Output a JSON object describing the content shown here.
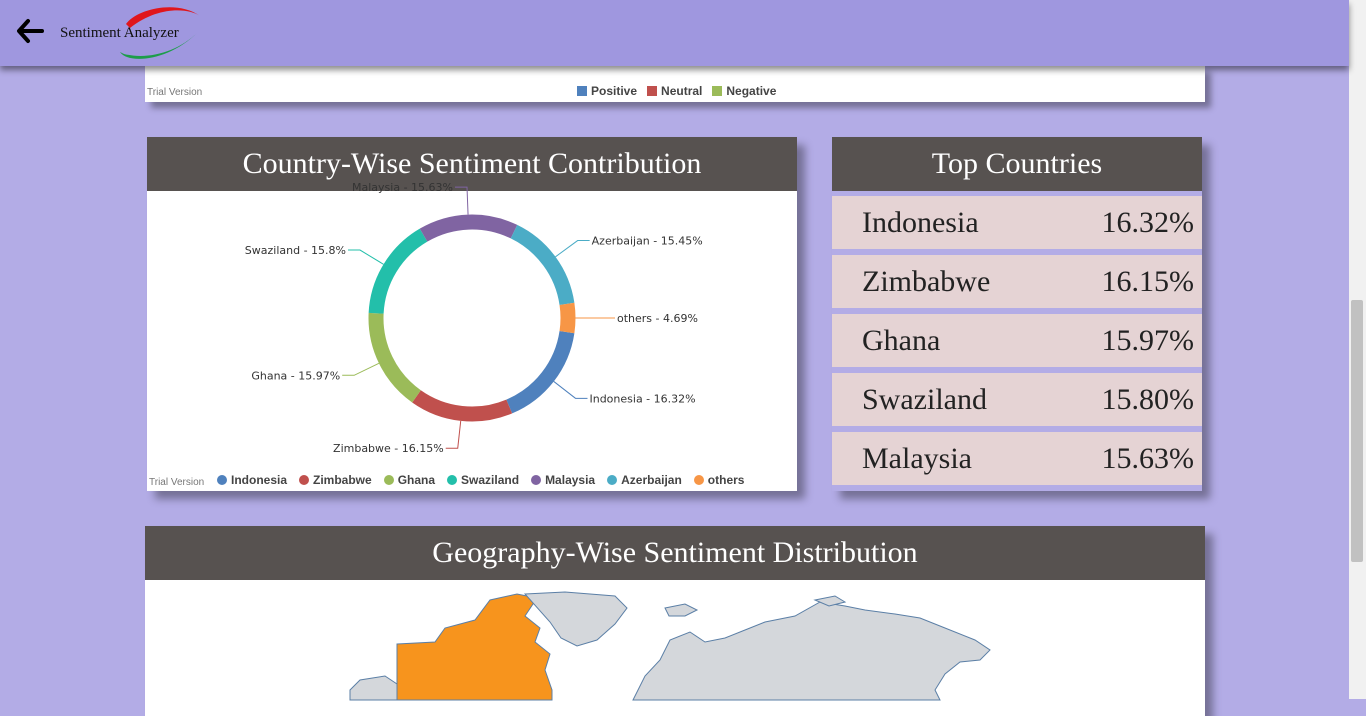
{
  "header": {
    "app_title": "Sentiment Analyzer",
    "back_icon": "arrow-left-icon"
  },
  "top_chart": {
    "trial_text": "Trial Version",
    "legend": [
      {
        "label": "Positive",
        "color": "#4f81bd"
      },
      {
        "label": "Neutral",
        "color": "#c0504d"
      },
      {
        "label": "Negative",
        "color": "#9bbb59"
      }
    ]
  },
  "country_panel": {
    "title": "Country-Wise Sentiment Contribution",
    "trial_text": "Trial Version"
  },
  "chart_data": {
    "type": "pie",
    "categories": [
      "Indonesia",
      "Zimbabwe",
      "Ghana",
      "Swaziland",
      "Malaysia",
      "Azerbaijan",
      "others"
    ],
    "values": [
      16.32,
      16.15,
      15.97,
      15.8,
      15.63,
      15.45,
      4.69
    ],
    "labels": [
      "Indonesia - 16.32%",
      "Zimbabwe - 16.15%",
      "Ghana - 15.97%",
      "Swaziland - 15.8%",
      "Malaysia - 15.63%",
      "Azerbaijan - 15.45%",
      "others - 4.69%"
    ],
    "colors": [
      "#4f81bd",
      "#c0504d",
      "#9bbb59",
      "#23bfaa",
      "#8064a2",
      "#4bacc6",
      "#f79646"
    ],
    "legend_position": "bottom"
  },
  "top_countries": {
    "title": "Top Countries",
    "rows": [
      {
        "name": "Indonesia",
        "value": "16.32%"
      },
      {
        "name": "Zimbabwe",
        "value": "16.15%"
      },
      {
        "name": "Ghana",
        "value": "15.97%"
      },
      {
        "name": "Swaziland",
        "value": "15.80%"
      },
      {
        "name": "Malaysia",
        "value": "15.63%"
      }
    ]
  },
  "geo_panel": {
    "title": "Geography-Wise Sentiment Distribution",
    "highlight_color": "#f7941d",
    "land_color": "#d4d7db"
  }
}
